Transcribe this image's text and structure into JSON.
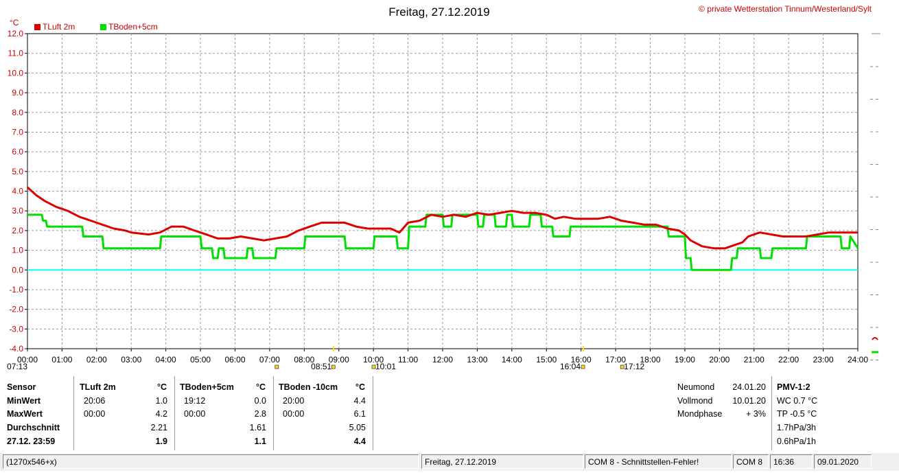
{
  "title": "Freitag, 27.12.2019",
  "copyright": "© private Wetterstation Tinnum/Westerland/Sylt",
  "unit_label": "°C",
  "legend": [
    {
      "label": "TLuft 2m",
      "color": "#dd0000"
    },
    {
      "label": "TBoden+5cm",
      "color": "#00e000"
    }
  ],
  "colors": {
    "zero_line": "#00ffff",
    "grid": "#999999",
    "red": "#dd0000",
    "green": "#00e000"
  },
  "chart_data": {
    "type": "line",
    "title": "Freitag, 27.12.2019",
    "ylabel": "°C",
    "xlabel": "",
    "ylim": [
      -4.0,
      12.0
    ],
    "xlim_hours": [
      0,
      24
    ],
    "grid": true,
    "y_ticks": [
      "12.0",
      "11.0",
      "10.0",
      "9.0",
      "8.0",
      "7.0",
      "6.0",
      "5.0",
      "4.0",
      "3.0",
      "2.0",
      "1.0",
      "0.0",
      "-1.0",
      "-2.0",
      "-3.0",
      "-4.0"
    ],
    "x_ticks": [
      "00:00",
      "01:00",
      "02:00",
      "03:00",
      "04:00",
      "05:00",
      "06:00",
      "07:00",
      "08:00",
      "09:00",
      "10:00",
      "11:00",
      "12:00",
      "13:00",
      "14:00",
      "15:00",
      "16:00",
      "17:00",
      "18:00",
      "19:00",
      "20:00",
      "21:00",
      "22:00",
      "23:00",
      "24:00"
    ],
    "series": [
      {
        "name": "TLuft 2m",
        "color": "#dd0000",
        "x": [
          "00:00",
          "00:15",
          "00:30",
          "00:50",
          "01:10",
          "01:30",
          "01:50",
          "02:10",
          "02:30",
          "02:50",
          "03:00",
          "03:30",
          "03:50",
          "04:10",
          "04:30",
          "04:50",
          "05:10",
          "05:30",
          "05:50",
          "06:10",
          "06:30",
          "06:50",
          "07:10",
          "07:30",
          "07:50",
          "08:10",
          "08:30",
          "08:50",
          "09:10",
          "09:30",
          "09:50",
          "10:10",
          "10:30",
          "10:45",
          "11:00",
          "11:20",
          "11:40",
          "12:00",
          "12:20",
          "12:40",
          "13:00",
          "13:20",
          "13:40",
          "14:00",
          "14:20",
          "14:40",
          "15:00",
          "15:15",
          "15:30",
          "15:50",
          "16:10",
          "16:30",
          "16:50",
          "17:10",
          "17:30",
          "17:50",
          "18:10",
          "18:30",
          "18:50",
          "19:00",
          "19:10",
          "19:30",
          "19:50",
          "20:10",
          "20:20",
          "20:40",
          "20:50",
          "21:10",
          "21:30",
          "21:50",
          "22:10",
          "22:30",
          "22:50",
          "23:10",
          "23:30",
          "23:50",
          "24:00"
        ],
        "y": [
          4.2,
          3.8,
          3.5,
          3.2,
          3.0,
          2.7,
          2.5,
          2.3,
          2.1,
          2.0,
          1.9,
          1.8,
          1.9,
          2.2,
          2.2,
          2.0,
          1.8,
          1.6,
          1.6,
          1.7,
          1.6,
          1.5,
          1.6,
          1.7,
          2.0,
          2.2,
          2.4,
          2.4,
          2.4,
          2.2,
          2.1,
          2.1,
          2.1,
          1.9,
          2.4,
          2.5,
          2.8,
          2.7,
          2.8,
          2.7,
          2.9,
          2.8,
          2.9,
          3.0,
          2.9,
          2.9,
          2.8,
          2.6,
          2.7,
          2.6,
          2.6,
          2.6,
          2.7,
          2.5,
          2.4,
          2.3,
          2.3,
          2.1,
          2.0,
          1.8,
          1.5,
          1.2,
          1.1,
          1.1,
          1.2,
          1.4,
          1.7,
          1.9,
          1.8,
          1.7,
          1.7,
          1.7,
          1.8,
          1.9,
          1.9,
          1.9,
          1.9
        ]
      },
      {
        "name": "TBoden+5cm",
        "color": "#00e000",
        "x": [
          "00:00",
          "00:25",
          "00:27",
          "00:32",
          "00:34",
          "01:35",
          "01:37",
          "01:42",
          "01:44",
          "02:10",
          "02:12",
          "03:50",
          "03:52",
          "05:00",
          "05:02",
          "05:20",
          "05:22",
          "05:30",
          "05:32",
          "05:40",
          "05:42",
          "06:20",
          "06:22",
          "06:30",
          "06:32",
          "07:10",
          "07:12",
          "08:00",
          "08:02",
          "09:10",
          "09:12",
          "10:00",
          "10:02",
          "10:40",
          "10:42",
          "11:00",
          "11:02",
          "11:30",
          "11:32",
          "12:00",
          "12:02",
          "12:15",
          "12:17",
          "13:00",
          "13:02",
          "13:10",
          "13:12",
          "13:30",
          "13:32",
          "13:50",
          "13:52",
          "14:00",
          "14:02",
          "14:30",
          "14:32",
          "14:50",
          "14:52",
          "15:10",
          "15:12",
          "15:40",
          "15:42",
          "16:00",
          "16:02",
          "18:30",
          "18:32",
          "18:40",
          "18:42",
          "19:00",
          "19:02",
          "19:10",
          "19:12",
          "19:40",
          "19:42",
          "20:20",
          "20:22",
          "20:30",
          "20:32",
          "20:50",
          "20:52",
          "21:10",
          "21:12",
          "21:30",
          "21:32",
          "22:00",
          "22:02",
          "22:30",
          "22:32",
          "23:30",
          "23:32",
          "23:45",
          "23:47",
          "24:00"
        ],
        "y": [
          2.8,
          2.8,
          2.5,
          2.5,
          2.2,
          2.2,
          1.7,
          1.7,
          1.7,
          1.7,
          1.1,
          1.1,
          1.7,
          1.7,
          1.1,
          1.1,
          0.6,
          0.6,
          1.1,
          1.1,
          0.6,
          0.6,
          1.1,
          1.1,
          0.6,
          0.6,
          1.1,
          1.1,
          1.7,
          1.7,
          1.1,
          1.1,
          1.7,
          1.7,
          1.1,
          1.1,
          2.2,
          2.2,
          2.8,
          2.8,
          2.2,
          2.2,
          2.8,
          2.8,
          2.2,
          2.2,
          2.8,
          2.8,
          2.2,
          2.2,
          2.8,
          2.8,
          2.2,
          2.2,
          2.8,
          2.8,
          2.2,
          2.2,
          1.7,
          1.7,
          2.2,
          2.2,
          2.2,
          2.2,
          1.7,
          1.7,
          1.7,
          1.7,
          0.6,
          0.6,
          0.0,
          0.0,
          0.0,
          0.0,
          0.6,
          0.6,
          1.1,
          1.1,
          1.1,
          1.1,
          0.6,
          0.6,
          1.1,
          1.1,
          1.1,
          1.1,
          1.7,
          1.7,
          1.1,
          1.1,
          1.7,
          1.1
        ]
      },
      {
        "name": "",
        "color": "#00ffff",
        "x": [
          "00:00",
          "24:00"
        ],
        "y": [
          0.0,
          0.0
        ]
      }
    ],
    "sun_markers": {
      "sunrise": "07:13",
      "sunset": "16:04",
      "extra": [
        "08:51",
        "10:01",
        "17:12"
      ]
    }
  },
  "table": {
    "row_labels": [
      "Sensor",
      "MinWert",
      "MaxWert",
      "Durchschnitt",
      "27.12. 23:59"
    ],
    "sensors": [
      {
        "name": "TLuft 2m",
        "unit": "°C",
        "min_time": "20:06",
        "min": "1.0",
        "max_time": "00:00",
        "max": "4.2",
        "avg": "2.21",
        "current": "1.9"
      },
      {
        "name": "TBoden+5cm",
        "unit": "°C",
        "min_time": "19:12",
        "min": "0.0",
        "max_time": "00:00",
        "max": "2.8",
        "avg": "1.61",
        "current": "1.1"
      },
      {
        "name": "TBoden -10cm",
        "unit": "°C",
        "min_time": "20:00",
        "min": "4.4",
        "max_time": "00:00",
        "max": "6.1",
        "avg": "5.05",
        "current": "4.4"
      }
    ],
    "moon": [
      {
        "label": "Neumond",
        "value": "24.01.20"
      },
      {
        "label": "Vollmond",
        "value": "10.01.20"
      },
      {
        "label": "Mondphase",
        "value": "+ 3%"
      }
    ],
    "pmv": {
      "title": "PMV-1:2",
      "lines": [
        "WC 0.7 °C",
        "TP -0.5 °C",
        "1.7hPa/3h",
        "0.6hPa/1h"
      ]
    }
  },
  "status_bar": [
    "(1270x546+x)",
    "Freitag, 27.12.2019",
    "COM 8 - Schnittstellen-Fehler!",
    "COM 8",
    "16:36",
    "09.01.2020"
  ]
}
